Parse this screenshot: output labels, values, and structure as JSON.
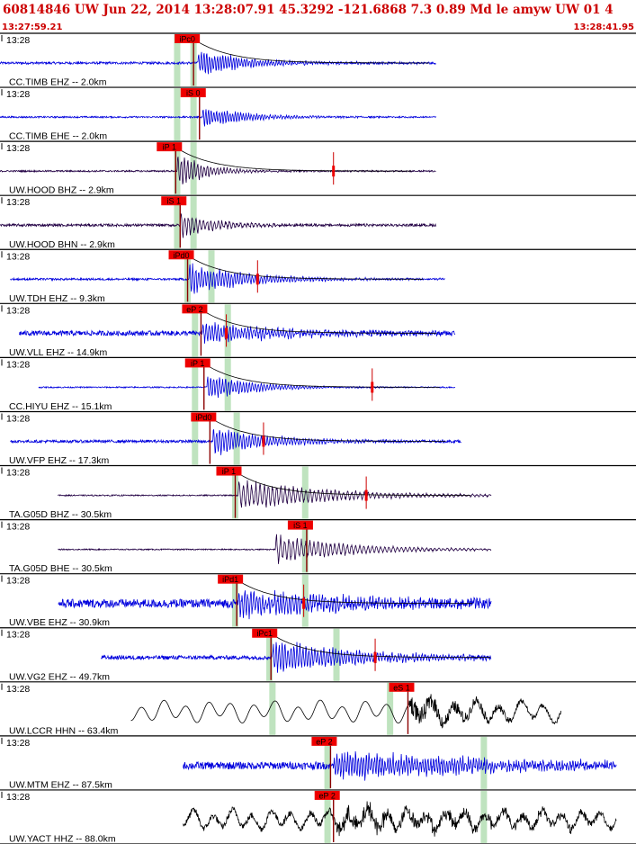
{
  "header": {
    "title": "60814846 UW Jun 22, 2014 13:28:07.91   45.3292 -121.6868  7.3 0.89 Md le amyw UW 01   4",
    "start_time": "13:27:59.21",
    "end_time": "13:28:41.95"
  },
  "colors": {
    "title": "#cc0000",
    "pick_box": "#ee0000",
    "pick_line": "#cc0000",
    "window": "#bfe3bf",
    "trace_blue": "#0000dd",
    "trace_purple": "#220044",
    "trace_black": "#000000",
    "synthetic": "#000000"
  },
  "chart_data": {
    "type": "line",
    "x_axis": "time",
    "xlim": [
      "13:27:59.21",
      "13:28:41.95"
    ],
    "grid": false,
    "traces": [
      {
        "station": "CC.TIMB EHZ -- 2.0km",
        "minute": "13:28",
        "pick": "iPc0",
        "pick_s": 13.0,
        "trace_start_s": 0.0,
        "trace_end_s": 29.3,
        "windows_s": [
          11.9,
          13.0
        ],
        "color": "blue",
        "amp": 11,
        "noise": 0.12,
        "period_s": 0.18,
        "onset_s": 13.3,
        "decay_s": 3.5,
        "extra_mark_s": null,
        "synthetic": true
      },
      {
        "station": "CC.TIMB EHE -- 2.0km",
        "minute": "13:28",
        "pick": "iS 0",
        "pick_s": 13.4,
        "trace_start_s": 0.0,
        "trace_end_s": 29.3,
        "windows_s": [
          11.9,
          13.0
        ],
        "color": "blue",
        "amp": 9,
        "noise": 0.1,
        "period_s": 0.18,
        "onset_s": 13.6,
        "decay_s": 3.0,
        "extra_mark_s": null,
        "synthetic": false
      },
      {
        "station": "UW.HOOD BHZ -- 2.9km",
        "minute": "13:28",
        "pick": "iP 1",
        "pick_s": 11.8,
        "trace_start_s": 0.0,
        "trace_end_s": 29.3,
        "windows_s": [
          11.9,
          13.0
        ],
        "color": "purple",
        "amp": 15,
        "noise": 0.06,
        "period_s": 0.22,
        "onset_s": 11.9,
        "decay_s": 2.0,
        "extra_mark_s": 22.4,
        "synthetic": true
      },
      {
        "station": "UW.HOOD BHN -- 2.9km",
        "minute": "13:28",
        "pick": "iS 1",
        "pick_s": 12.1,
        "trace_start_s": 0.0,
        "trace_end_s": 29.3,
        "windows_s": [
          11.9,
          13.0
        ],
        "color": "purple",
        "amp": 12,
        "noise": 0.12,
        "period_s": 0.25,
        "onset_s": 12.1,
        "decay_s": 2.5,
        "extra_mark_s": null,
        "synthetic": false
      },
      {
        "station": "UW.TDH EHZ -- 9.3km",
        "minute": "13:28",
        "pick": "iPd0",
        "pick_s": 12.6,
        "trace_start_s": 0.7,
        "trace_end_s": 29.9,
        "windows_s": [
          12.6,
          14.2
        ],
        "color": "blue",
        "amp": 14,
        "noise": 0.08,
        "period_s": 0.2,
        "onset_s": 12.7,
        "decay_s": 4.0,
        "extra_mark_s": 17.3,
        "synthetic": true
      },
      {
        "station": "UW.VLL EHZ -- 14.9km",
        "minute": "13:28",
        "pick": "eP 2",
        "pick_s": 13.5,
        "trace_start_s": 1.3,
        "trace_end_s": 30.6,
        "windows_s": [
          13.1,
          15.3
        ],
        "color": "blue",
        "amp": 9,
        "noise": 0.3,
        "period_s": 0.2,
        "onset_s": 13.6,
        "decay_s": 6.0,
        "extra_mark_s": 15.2,
        "synthetic": true
      },
      {
        "station": "CC.HIYU EHZ -- 15.1km",
        "minute": "13:28",
        "pick": "iP 1",
        "pick_s": 13.7,
        "trace_start_s": 2.6,
        "trace_end_s": 30.6,
        "windows_s": [
          13.1,
          15.3
        ],
        "color": "blue",
        "amp": 12,
        "noise": 0.06,
        "period_s": 0.2,
        "onset_s": 13.9,
        "decay_s": 3.0,
        "extra_mark_s": 25.0,
        "synthetic": true
      },
      {
        "station": "UW.VFP EHZ -- 17.3km",
        "minute": "13:28",
        "pick": "iPd0",
        "pick_s": 14.1,
        "trace_start_s": 0.7,
        "trace_end_s": 31.0,
        "windows_s": [
          13.1,
          15.9
        ],
        "color": "blue",
        "amp": 13,
        "noise": 0.12,
        "period_s": 0.2,
        "onset_s": 14.3,
        "decay_s": 4.0,
        "extra_mark_s": 17.7,
        "synthetic": true
      },
      {
        "station": "TA.G05D BHZ -- 30.5km",
        "minute": "13:28",
        "pick": "iP 1",
        "pick_s": 15.8,
        "trace_start_s": 3.9,
        "trace_end_s": 33.0,
        "windows_s": [
          15.8,
          20.5
        ],
        "color": "purple",
        "amp": 14,
        "noise": 0.05,
        "period_s": 0.28,
        "onset_s": 16.0,
        "decay_s": 6.0,
        "extra_mark_s": 24.6,
        "synthetic": true
      },
      {
        "station": "TA.G05D BHE -- 30.5km",
        "minute": "13:28",
        "pick": "iS 1",
        "pick_s": 20.6,
        "trace_start_s": 3.9,
        "trace_end_s": 33.0,
        "windows_s": [
          20.5
        ],
        "color": "purple",
        "amp": 13,
        "noise": 0.05,
        "period_s": 0.28,
        "onset_s": 18.5,
        "decay_s": 5.0,
        "extra_mark_s": null,
        "synthetic": false
      },
      {
        "station": "UW.VBE EHZ -- 30.9km",
        "minute": "13:28",
        "pick": "iPd1",
        "pick_s": 15.9,
        "trace_start_s": 3.9,
        "trace_end_s": 33.0,
        "windows_s": [
          15.8,
          20.5
        ],
        "color": "blue",
        "amp": 12,
        "noise": 0.4,
        "period_s": 0.2,
        "onset_s": 16.0,
        "decay_s": 8.0,
        "extra_mark_s": 20.4,
        "synthetic": true
      },
      {
        "station": "UW.VG2 EHZ -- 49.7km",
        "minute": "13:28",
        "pick": "iPc1",
        "pick_s": 18.2,
        "trace_start_s": 6.8,
        "trace_end_s": 33.0,
        "windows_s": [
          18.1,
          22.6
        ],
        "color": "blue",
        "amp": 15,
        "noise": 0.15,
        "period_s": 0.2,
        "onset_s": 18.3,
        "decay_s": 6.0,
        "extra_mark_s": 25.2,
        "synthetic": true
      },
      {
        "station": "UW.LCCR HHN -- 63.4km",
        "minute": "13:28",
        "pick": "eS 1",
        "pick_s": 27.4,
        "trace_start_s": 8.8,
        "trace_end_s": 37.7,
        "windows_s": [
          18.3,
          26.2
        ],
        "color": "black",
        "amp": 16,
        "noise": 0.0,
        "period_s": 1.5,
        "onset_s": 27.5,
        "decay_s": 6.0,
        "extra_mark_s": null,
        "synthetic": false
      },
      {
        "station": "UW.MTM EHZ -- 87.5km",
        "minute": "13:28",
        "pick": "eP 2",
        "pick_s": 22.2,
        "trace_start_s": 12.3,
        "trace_end_s": 41.4,
        "windows_s": [
          22.0,
          32.5
        ],
        "color": "blue",
        "amp": 12,
        "noise": 0.35,
        "period_s": 0.18,
        "onset_s": 22.4,
        "decay_s": 12.0,
        "extra_mark_s": null,
        "synthetic": false
      },
      {
        "station": "UW.YACT HHZ -- 88.0km",
        "minute": "13:28",
        "pick": "eP 2",
        "pick_s": 22.4,
        "trace_start_s": 12.3,
        "trace_end_s": 41.4,
        "windows_s": [
          22.0,
          32.5
        ],
        "color": "black",
        "amp": 14,
        "noise": 0.25,
        "period_s": 1.3,
        "onset_s": 22.6,
        "decay_s": 12.0,
        "extra_mark_s": null,
        "synthetic": false
      }
    ]
  }
}
